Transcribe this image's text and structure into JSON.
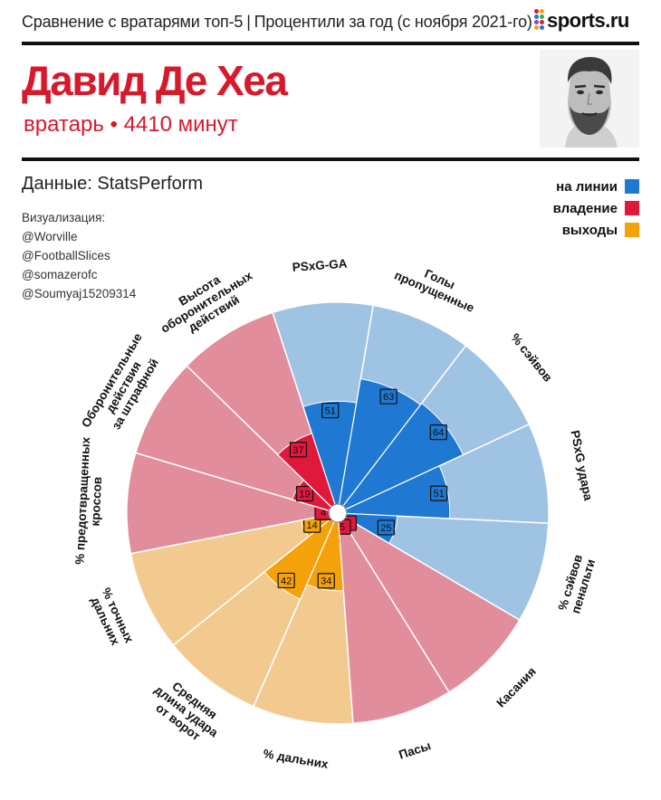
{
  "header": {
    "subtitle_left": "Сравнение с вратарями топ-5",
    "subtitle_sep": "|",
    "subtitle_right": "Процентили за год (с ноября 2021-го)",
    "brand": "sports.ru"
  },
  "player": {
    "name": "Давид Де Хеа",
    "role": "вратарь • 4410 минут"
  },
  "source": "Данные: StatsPerform",
  "credits": {
    "title": "Визуализация:",
    "names": [
      "@Worville",
      "@FootballSlices",
      "@somazerofc",
      "@Soumyaj15209314"
    ]
  },
  "legend": [
    {
      "label": "на линии",
      "color": "#1f78d1"
    },
    {
      "label": "владение",
      "color": "#e0183c"
    },
    {
      "label": "выходы",
      "color": "#f5a20a"
    }
  ],
  "colors": {
    "shot_stopping_light": "#9fc3e2",
    "possession_light": "#e28d9c",
    "sweeping_light": "#f2ca8f",
    "logo_dots": [
      "#e0183c",
      "#f5a20a",
      "#1f78d1",
      "#3fae49",
      "#8e44ad",
      "#e0183c",
      "#f5a20a",
      "#1f78d1"
    ]
  },
  "chart_data": {
    "type": "polar-bar",
    "title": "Давид Де Хеа",
    "scale": [
      0,
      100
    ],
    "categories": [
      {
        "label": [
          "PSxG-GA"
        ],
        "value": 51,
        "group": "на линии"
      },
      {
        "label": [
          "Голы",
          "пропущенные"
        ],
        "value": 63,
        "group": "на линии"
      },
      {
        "label": [
          "% сэйвов"
        ],
        "value": 64,
        "group": "на линии"
      },
      {
        "label": [
          "PSxG удара"
        ],
        "value": 51,
        "group": "на линии"
      },
      {
        "label": [
          "% сэйвов",
          "пенальти"
        ],
        "value": 25,
        "group": "на линии"
      },
      {
        "label": [
          "Касания"
        ],
        "value": 4,
        "group": "владение"
      },
      {
        "label": [
          "Пасы"
        ],
        "value": 5,
        "group": "владение"
      },
      {
        "label": [
          "% дальних"
        ],
        "value": 34,
        "group": "выходы"
      },
      {
        "label": [
          "Средняя",
          "длина удара",
          "от ворот"
        ],
        "value": 42,
        "group": "выходы"
      },
      {
        "label": [
          "% точных",
          "дальних"
        ],
        "value": 14,
        "group": "выходы"
      },
      {
        "label": [
          "% предотвращенных",
          "кроссов"
        ],
        "value": 4,
        "group": "владение"
      },
      {
        "label": [
          "Оборонительные",
          "действия",
          "за штрафной"
        ],
        "value": 19,
        "group": "владение"
      },
      {
        "label": [
          "Высота",
          "оборонительных",
          "действий"
        ],
        "value": 37,
        "group": "владение"
      }
    ]
  }
}
